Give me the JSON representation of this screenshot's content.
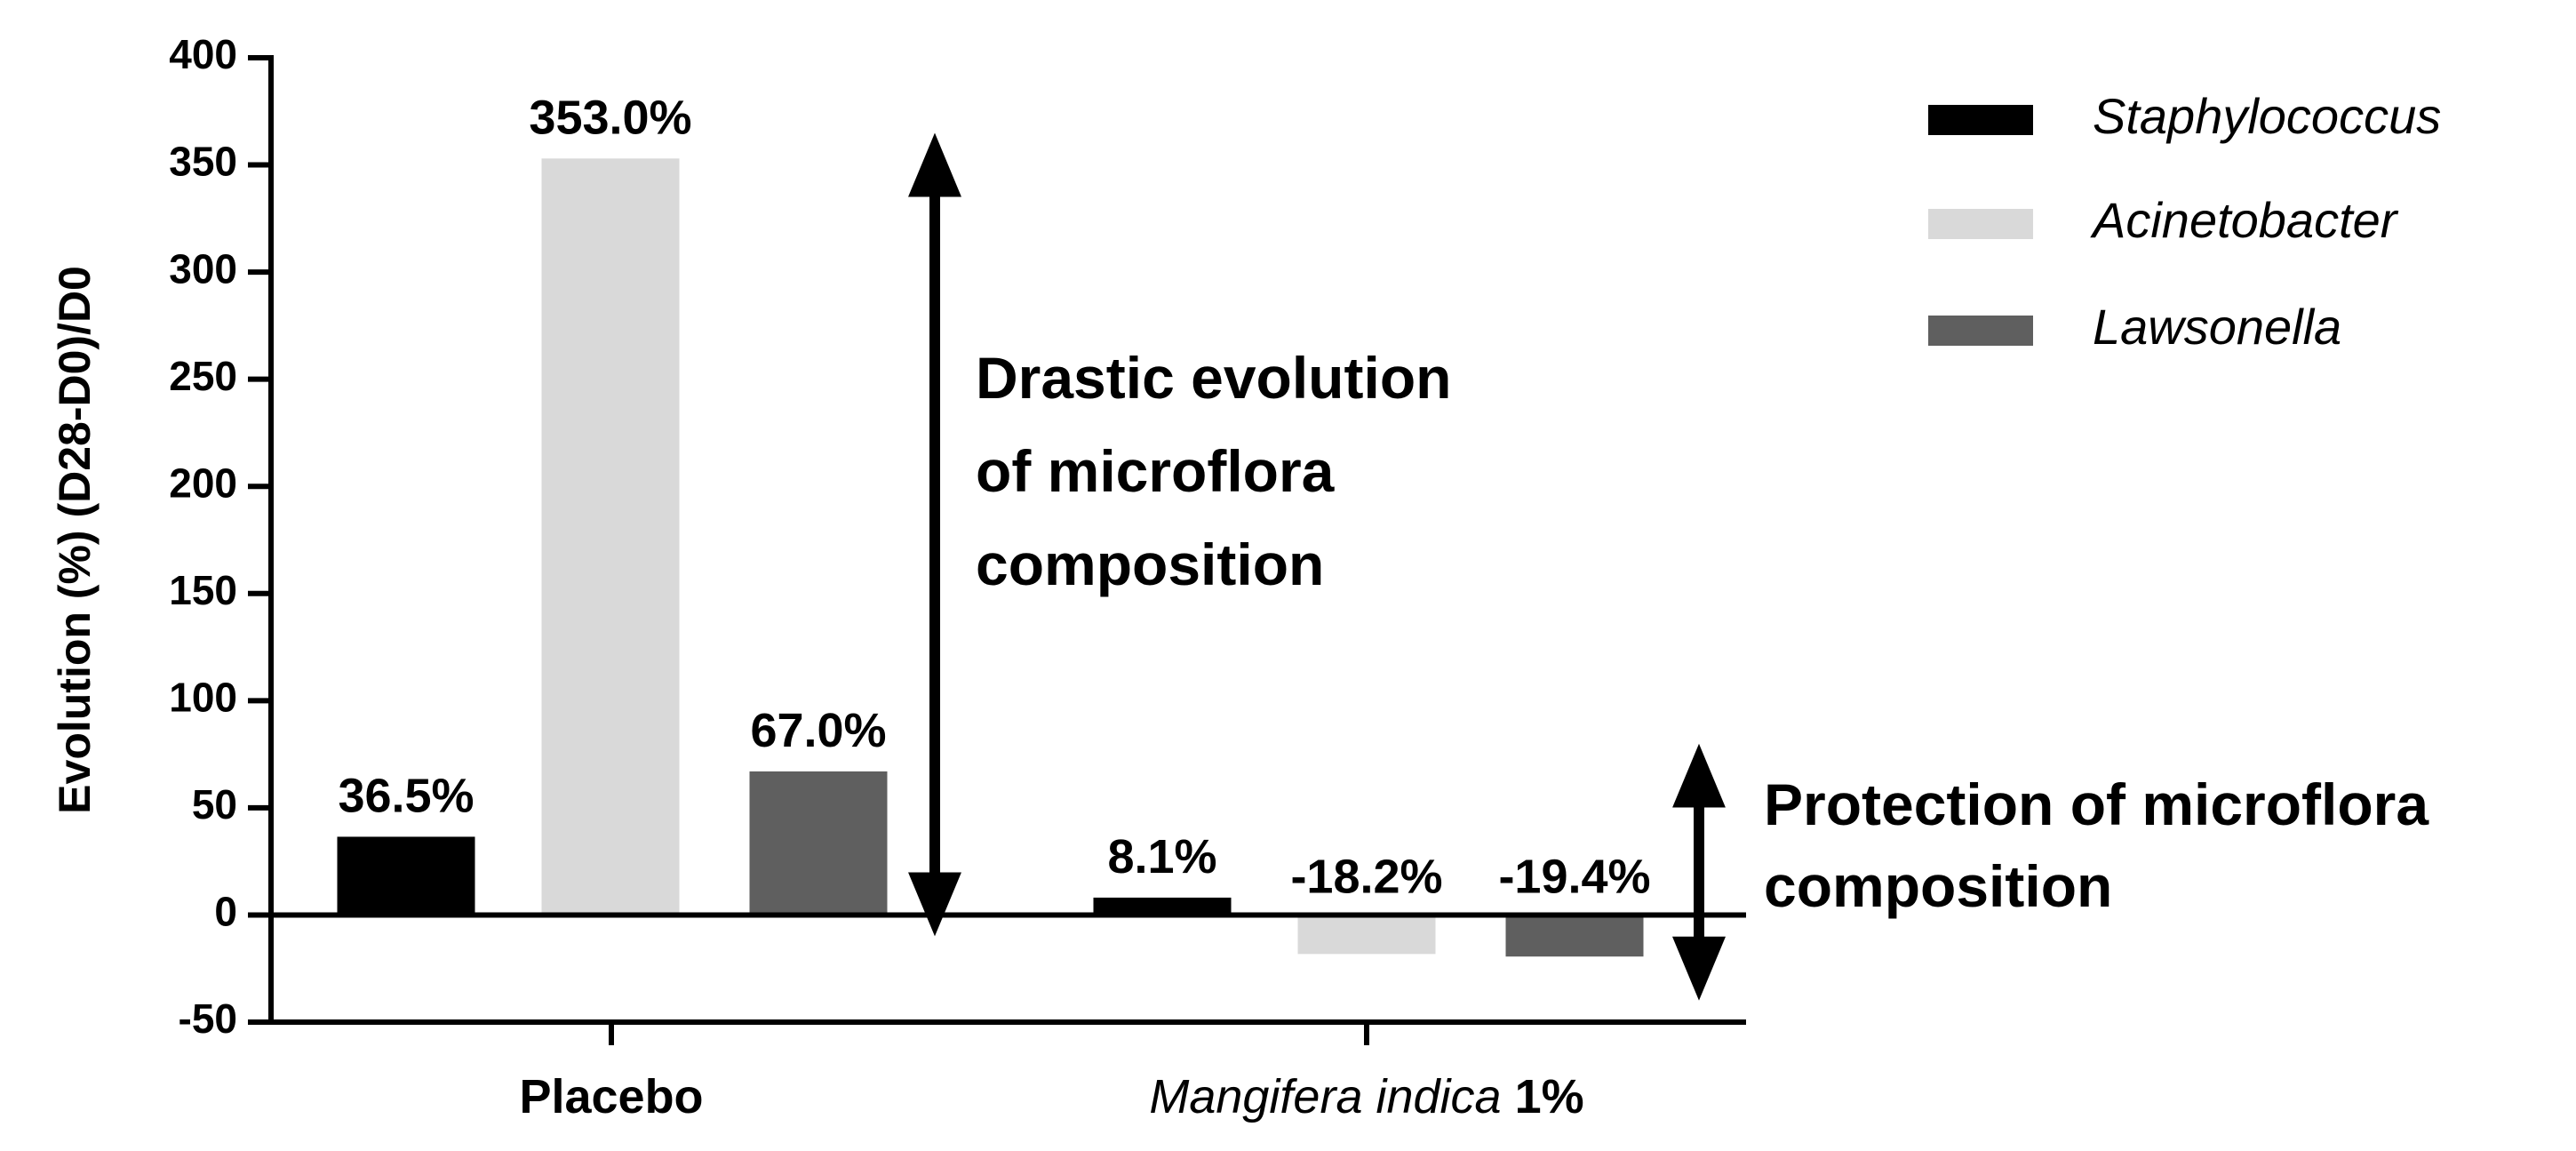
{
  "chart_data": {
    "type": "bar",
    "ylabel": "Evolution (%) (D28-D0)/D0",
    "ylim": [
      -50,
      400
    ],
    "yticks": [
      -50,
      0,
      50,
      100,
      150,
      200,
      250,
      300,
      350,
      400
    ],
    "categories": [
      {
        "italic": "",
        "bold": "Placebo"
      },
      {
        "italic": "Mangifera indica",
        "bold": " 1%"
      }
    ],
    "series": [
      {
        "name": "Staphylococcus",
        "color": "#000000",
        "values": [
          36.5,
          8.1
        ],
        "labels": [
          "36.5%",
          "8.1%"
        ]
      },
      {
        "name": "Acinetobacter",
        "color": "#d9d9d9",
        "values": [
          353.0,
          -18.2
        ],
        "labels": [
          "353.0%",
          "-18.2%"
        ]
      },
      {
        "name": "Lawsonella",
        "color": "#5f5f5f",
        "values": [
          67.0,
          -19.4
        ],
        "labels": [
          "67.0%",
          "-19.4%"
        ]
      }
    ],
    "legend_position": "top-right",
    "annotations": [
      {
        "lines": [
          "Drastic evolution",
          "of microflora",
          "composition"
        ],
        "arrow_from": 350,
        "arrow_to": 5
      },
      {
        "lines": [
          "Protection of microflora",
          "composition"
        ],
        "arrow_from": 65,
        "arrow_to": -25
      }
    ]
  }
}
